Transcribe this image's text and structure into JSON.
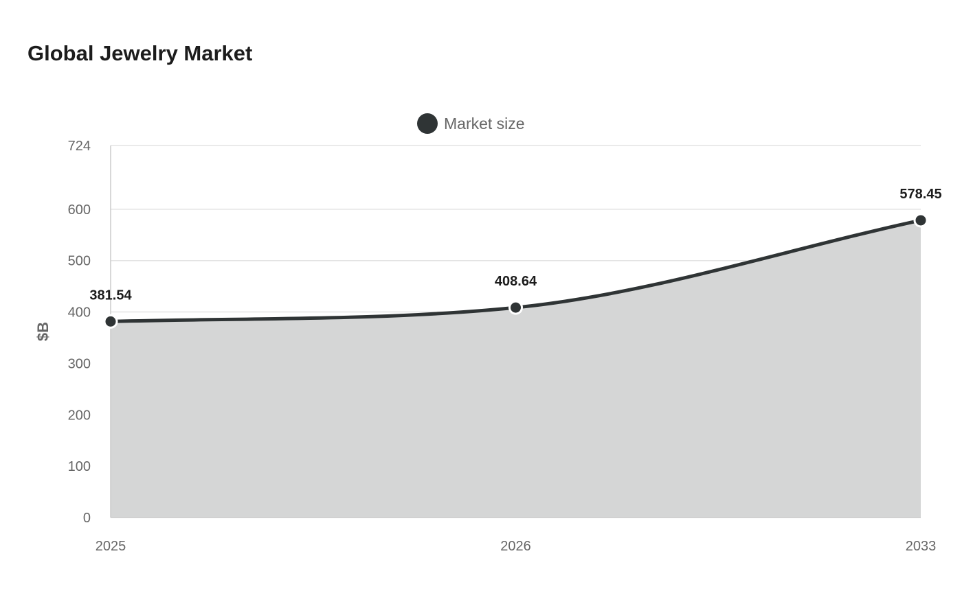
{
  "chart_data": {
    "type": "area",
    "title": "Global Jewelry Market",
    "xlabel": "",
    "ylabel": "$B",
    "categories": [
      "2025",
      "2026",
      "2033"
    ],
    "series": [
      {
        "name": "Market size",
        "values": [
          381.54,
          408.64,
          578.45
        ],
        "labels": [
          "381.54",
          "408.64",
          "578.45"
        ]
      }
    ],
    "ylim": [
      0,
      724
    ],
    "yticks": [
      0,
      100,
      200,
      300,
      400,
      500,
      600,
      724
    ],
    "yticks_labels": [
      "0",
      "100",
      "200",
      "300",
      "400",
      "500",
      "600",
      "724"
    ],
    "grid": true,
    "legend_position": "top-center",
    "colors": {
      "line": "#2f3435",
      "fill": "#d5d6d6",
      "grid": "#e3e3e3",
      "axis": "#cccccc"
    }
  }
}
